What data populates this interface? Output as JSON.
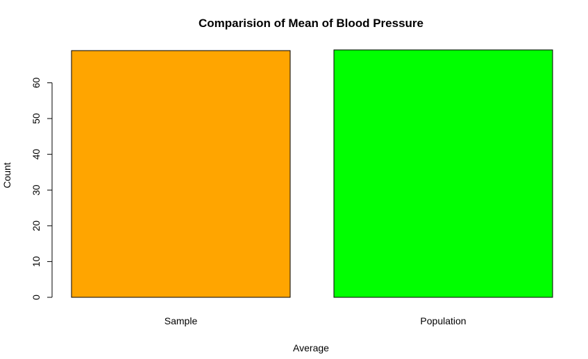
{
  "chart_data": {
    "type": "bar",
    "title": "Comparision of Mean of Blood Pressure",
    "xlabel": "Average",
    "ylabel": "Count",
    "categories": [
      "Sample",
      "Population"
    ],
    "values": [
      69,
      69.2
    ],
    "colors": [
      "#FFA500",
      "#00FF00"
    ],
    "ylim": [
      0,
      69.2
    ],
    "yticks": [
      0,
      10,
      20,
      30,
      40,
      50,
      60
    ],
    "grid": false,
    "legend": "none"
  }
}
